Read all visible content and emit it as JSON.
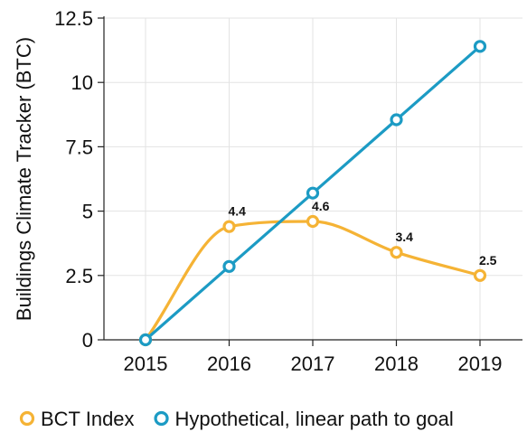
{
  "chart_data": {
    "type": "line",
    "title": "",
    "xlabel": "",
    "ylabel": "Buildings Climate Tracker (BTC)",
    "x": [
      "2015",
      "2016",
      "2017",
      "2018",
      "2019"
    ],
    "ylim": [
      0,
      12.5
    ],
    "yticks": [
      "0",
      "2.5",
      "5",
      "7.5",
      "10",
      "12.5"
    ],
    "grid": true,
    "legend_position": "bottom",
    "series": [
      {
        "name": "BCT Index",
        "values": [
          0,
          4.4,
          4.6,
          3.4,
          2.5
        ],
        "labels": [
          "",
          "4.4",
          "4.6",
          "3.4",
          "2.5"
        ],
        "color": "#f5b335",
        "smooth": true
      },
      {
        "name": "Hypothetical, linear path to goal",
        "values": [
          0,
          2.85,
          5.7,
          8.55,
          11.4
        ],
        "labels": [
          "",
          "",
          "",
          "",
          ""
        ],
        "color": "#1c9bc4",
        "smooth": false
      }
    ]
  }
}
